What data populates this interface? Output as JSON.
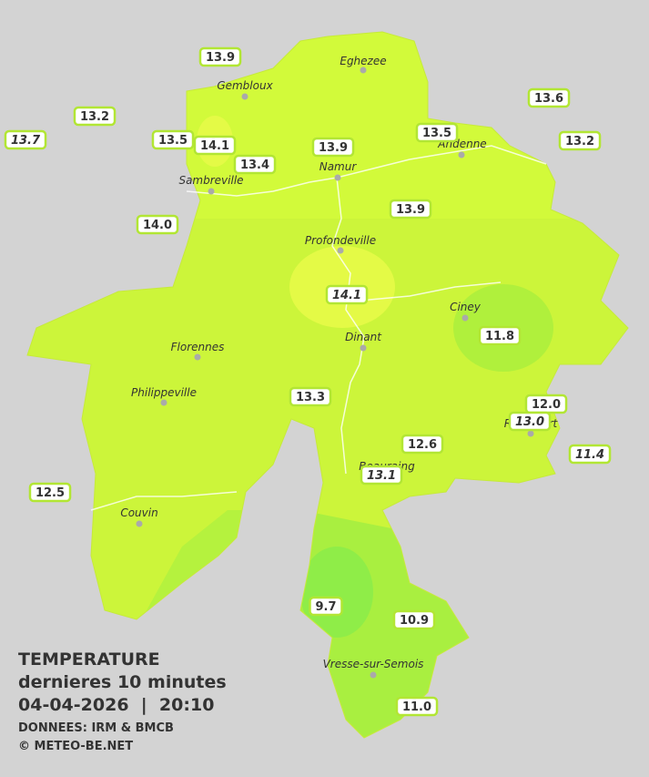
{
  "map": {
    "cities": [
      "Eghezee",
      "Gembloux",
      "Andenne",
      "Namur",
      "Sambreville",
      "Profondeville",
      "Ciney",
      "Dinant",
      "Florennes",
      "Philippeville",
      "Rochefort",
      "Beauraing",
      "Couvin",
      "Vresse-sur-Semois"
    ],
    "stations": [
      {
        "label": "13.9",
        "italic": false
      },
      {
        "label": "13.2",
        "italic": false
      },
      {
        "label": "13.7",
        "italic": true
      },
      {
        "label": "13.5",
        "italic": false
      },
      {
        "label": "14.1",
        "italic": false
      },
      {
        "label": "13.4",
        "italic": false
      },
      {
        "label": "13.9",
        "italic": false
      },
      {
        "label": "13.5",
        "italic": false
      },
      {
        "label": "13.6",
        "italic": false
      },
      {
        "label": "13.2",
        "italic": false
      },
      {
        "label": "14.0",
        "italic": false
      },
      {
        "label": "13.9",
        "italic": false
      },
      {
        "label": "14.1",
        "italic": true
      },
      {
        "label": "11.8",
        "italic": false
      },
      {
        "label": "13.3",
        "italic": false
      },
      {
        "label": "12.0",
        "italic": false
      },
      {
        "label": "13.0",
        "italic": true
      },
      {
        "label": "12.6",
        "italic": false
      },
      {
        "label": "11.4",
        "italic": true
      },
      {
        "label": "13.1",
        "italic": true
      },
      {
        "label": "12.5",
        "italic": false
      },
      {
        "label": "9.7",
        "italic": false
      },
      {
        "label": "10.9",
        "italic": false
      },
      {
        "label": "11.0",
        "italic": false
      }
    ]
  },
  "legend": {
    "title": "TEMPERATURE",
    "period": "dernieres 10 minutes",
    "datetime": "04-04-2026  |  20:10",
    "source": "DONNEES: IRM & BMCB",
    "copyright": "© METEO-BE.NET"
  }
}
